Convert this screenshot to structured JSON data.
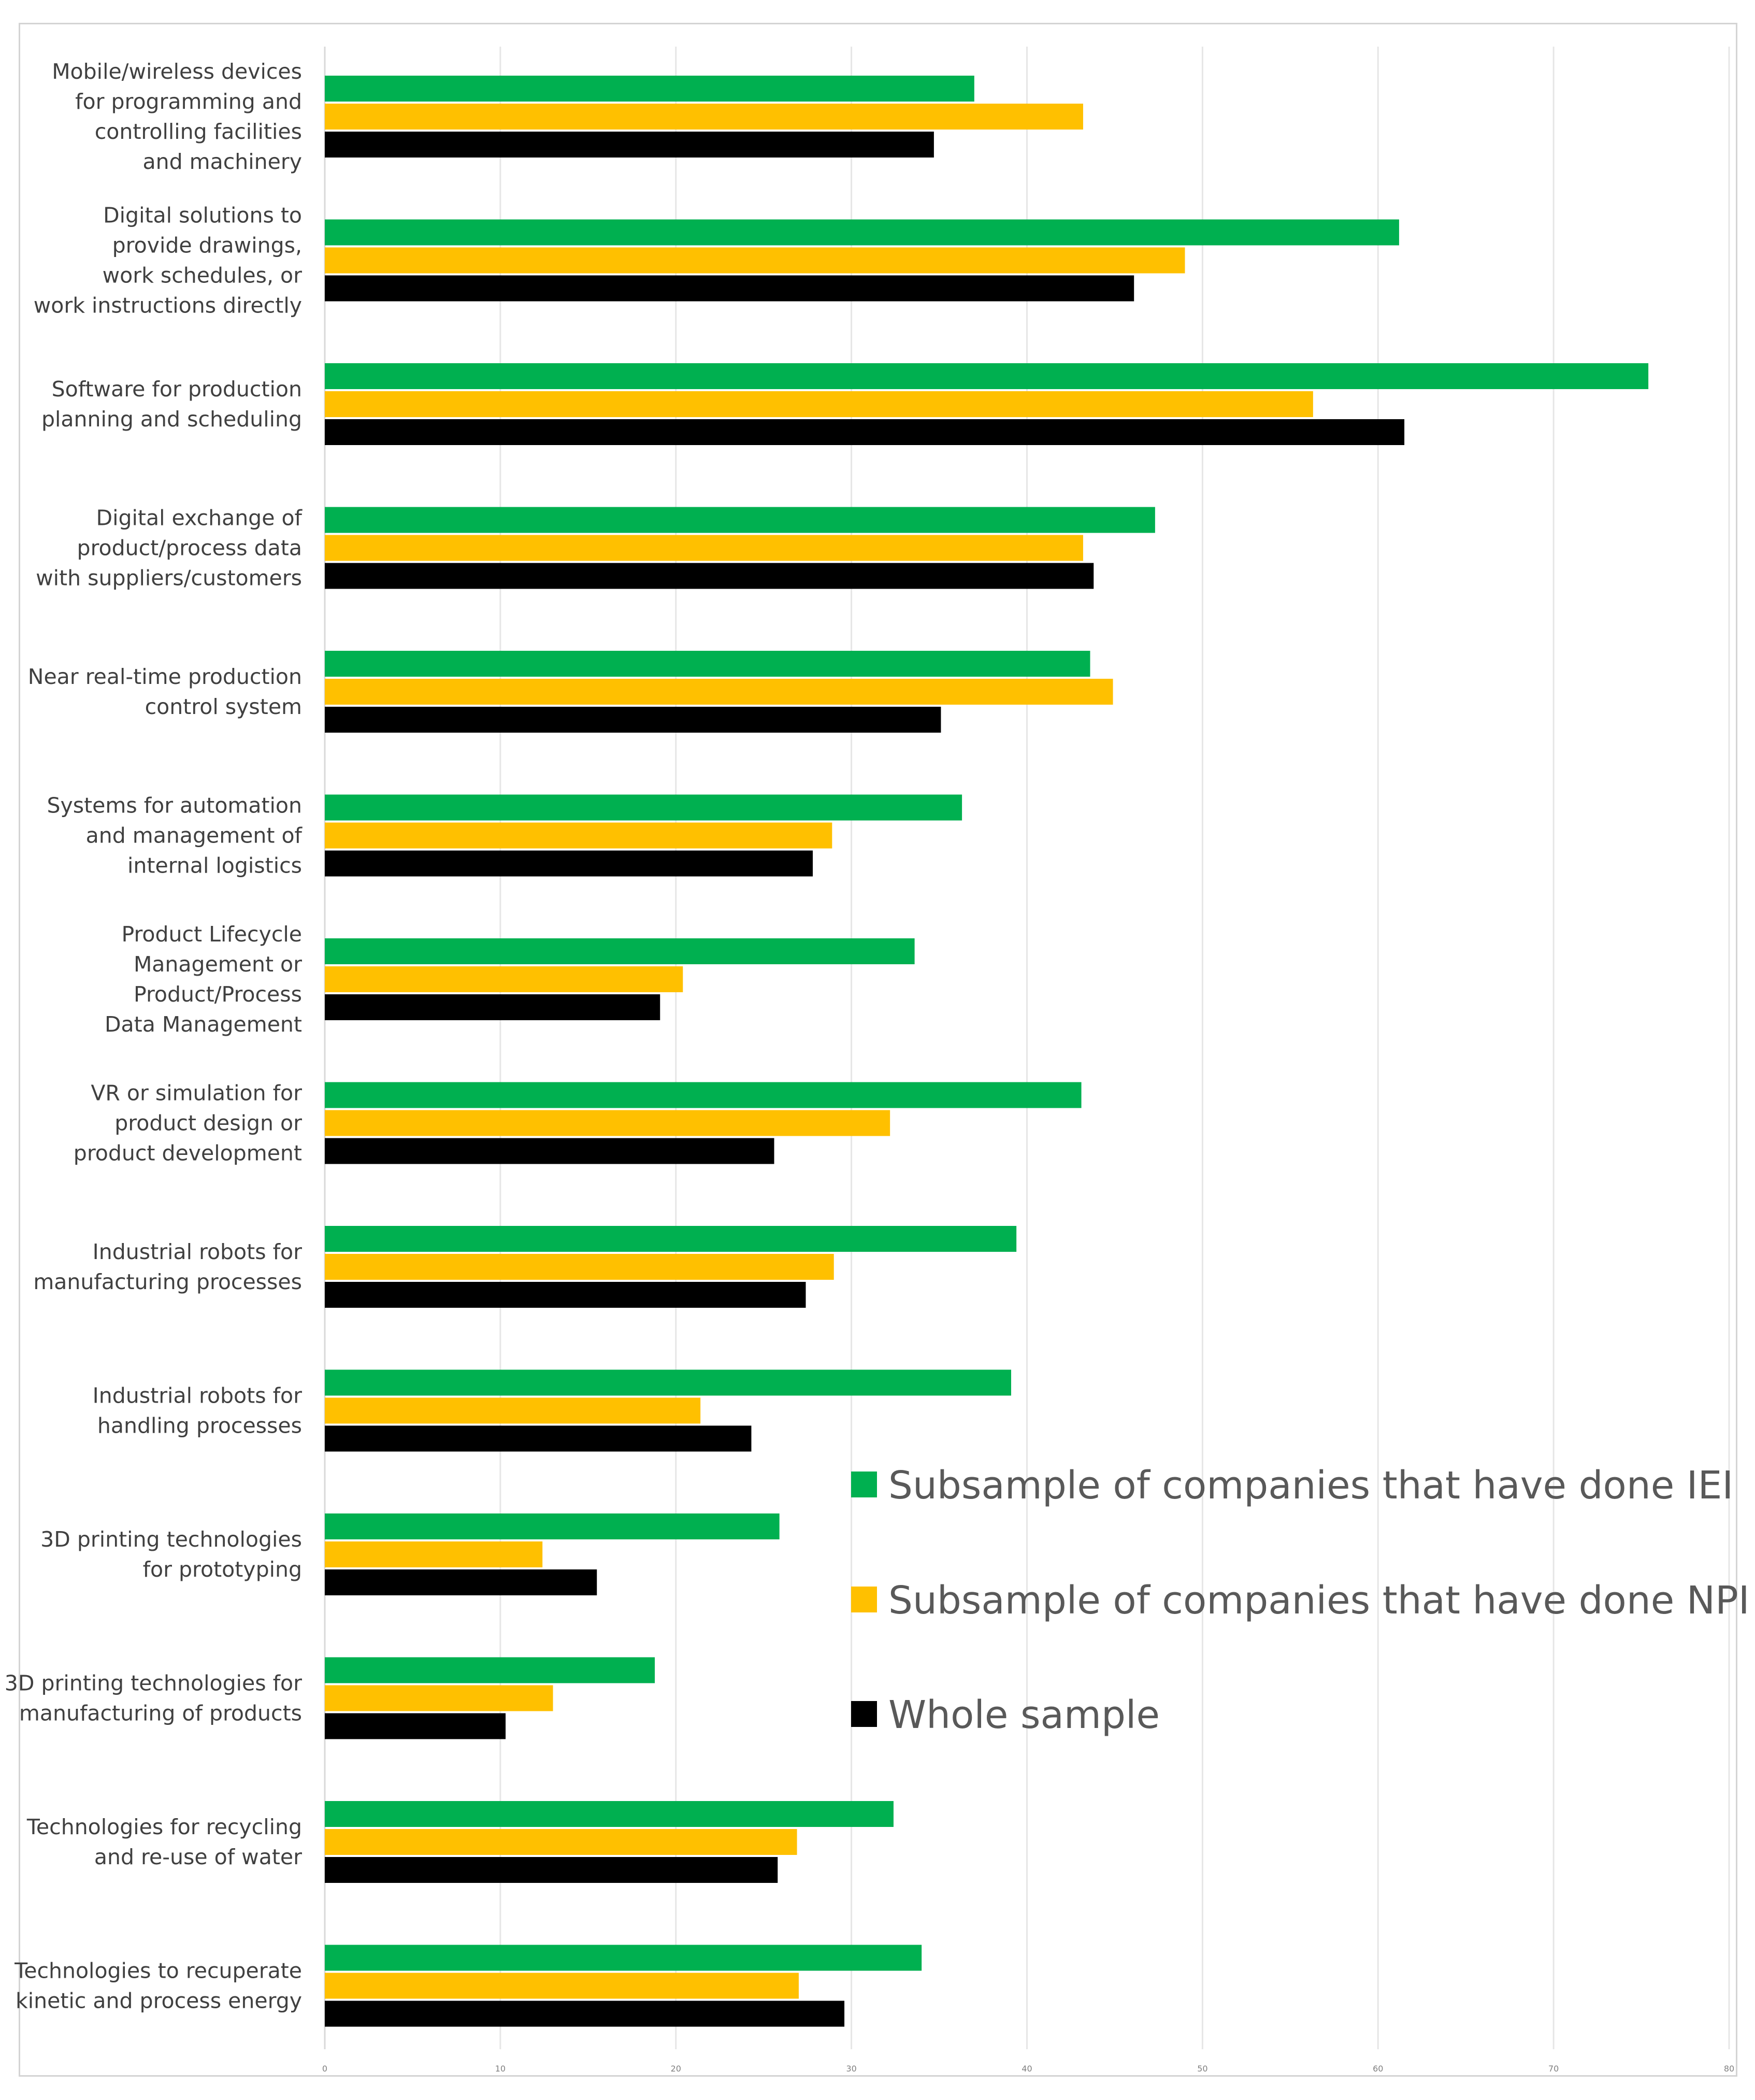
{
  "chart_data": {
    "type": "bar",
    "orientation": "horizontal",
    "title": "",
    "xlabel": "",
    "ylabel": "",
    "xlim": [
      0,
      80
    ],
    "xticks": [
      0,
      10,
      20,
      30,
      40,
      50,
      60,
      70,
      80
    ],
    "grid": true,
    "legend_position": "bottom-right",
    "categories": [
      [
        "Mobile/wireless devices",
        "for programming and",
        "controlling facilities",
        "and machinery"
      ],
      [
        "Digital solutions to",
        "provide drawings,",
        "work schedules, or",
        "work instructions directly"
      ],
      [
        "Software for production",
        "planning and scheduling"
      ],
      [
        "Digital exchange of",
        "product/process data",
        "with suppliers/customers"
      ],
      [
        "Near real-time production",
        "control system"
      ],
      [
        "Systems for automation",
        "and management of",
        "internal logistics"
      ],
      [
        "Product Lifecycle",
        "Management or",
        "Product/Process",
        "Data Management"
      ],
      [
        "VR or simulation for",
        "product design or",
        "product development"
      ],
      [
        "Industrial robots for",
        "manufacturing processes"
      ],
      [
        "Industrial robots for",
        "handling processes"
      ],
      [
        "3D printing technologies",
        "for prototyping"
      ],
      [
        "3D printing technologies for",
        "manufacturing of products"
      ],
      [
        "Technologies for recycling",
        "and re-use of water"
      ],
      [
        "Technologies to recuperate",
        "kinetic and process energy"
      ]
    ],
    "series": [
      {
        "name": "Subsample of companies that have done IEI",
        "color": "#00b050",
        "values": [
          37.0,
          61.2,
          75.4,
          47.3,
          43.6,
          36.3,
          33.6,
          43.1,
          39.4,
          39.1,
          25.9,
          18.8,
          32.4,
          34.0
        ]
      },
      {
        "name": "Subsample of companies that have done NPI",
        "color": "#ffc000",
        "values": [
          43.2,
          49.0,
          56.3,
          43.2,
          44.9,
          28.9,
          20.4,
          32.2,
          29.0,
          21.4,
          12.4,
          13.0,
          26.9,
          27.0
        ]
      },
      {
        "name": "Whole sample",
        "color": "#000000",
        "values": [
          34.7,
          46.1,
          61.5,
          43.8,
          35.1,
          27.8,
          19.1,
          25.6,
          27.4,
          24.3,
          15.5,
          10.3,
          25.8,
          29.6
        ]
      }
    ]
  }
}
